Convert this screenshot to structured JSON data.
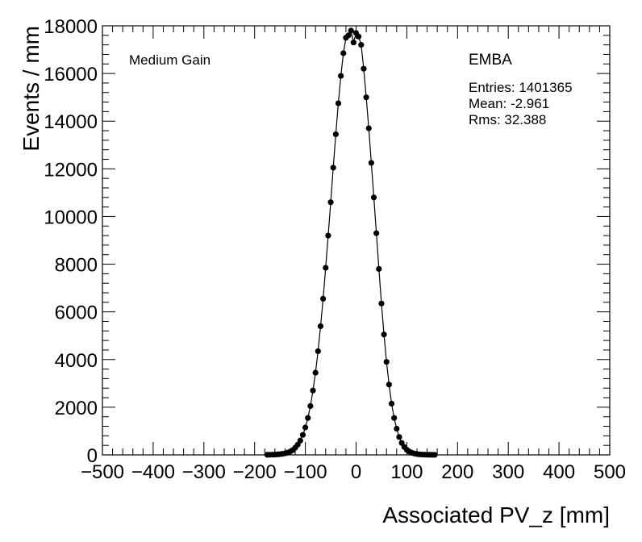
{
  "chart_data": {
    "type": "scatter",
    "title": "",
    "xlabel": "Associated PV_z [mm]",
    "ylabel": "Events / mm",
    "xlim": [
      -500,
      500
    ],
    "ylim": [
      0,
      18000
    ],
    "x_ticks": [
      -500,
      -400,
      -300,
      -200,
      -100,
      0,
      100,
      200,
      300,
      400,
      500
    ],
    "x_tick_labels": [
      "−500",
      "−400",
      "−300",
      "−200",
      "−100",
      "0",
      "100",
      "200",
      "300",
      "400",
      "500"
    ],
    "y_ticks": [
      0,
      2000,
      4000,
      6000,
      8000,
      10000,
      12000,
      14000,
      16000,
      18000
    ],
    "y_tick_labels": [
      "0",
      "2000",
      "4000",
      "6000",
      "8000",
      "10000",
      "12000",
      "14000",
      "16000",
      "18000"
    ],
    "grid": false,
    "series": [
      {
        "name": "",
        "color": "#000000",
        "x": [
          -175,
          -170,
          -165,
          -160,
          -155,
          -150,
          -145,
          -140,
          -135,
          -130,
          -125,
          -120,
          -115,
          -110,
          -105,
          -100,
          -95,
          -90,
          -85,
          -80,
          -75,
          -70,
          -65,
          -60,
          -55,
          -50,
          -45,
          -40,
          -35,
          -30,
          -25,
          -20,
          -15,
          -10,
          -5,
          0,
          5,
          10,
          15,
          20,
          25,
          30,
          35,
          40,
          45,
          50,
          55,
          60,
          65,
          70,
          75,
          80,
          85,
          90,
          95,
          100,
          105,
          110,
          115,
          120,
          125,
          130,
          135,
          140,
          145,
          150,
          155
        ],
        "y": [
          5,
          7,
          10,
          14,
          20,
          30,
          45,
          65,
          95,
          140,
          200,
          300,
          430,
          600,
          840,
          1150,
          1550,
          2050,
          2700,
          3450,
          4350,
          5400,
          6550,
          7850,
          9200,
          10600,
          12050,
          13450,
          14750,
          15900,
          16850,
          17500,
          17600,
          17800,
          17300,
          17700,
          17550,
          17200,
          16200,
          15000,
          13700,
          12250,
          10800,
          9300,
          7800,
          6350,
          5050,
          3900,
          2950,
          2150,
          1550,
          1100,
          750,
          500,
          330,
          215,
          140,
          90,
          58,
          37,
          23,
          15,
          10,
          7,
          5,
          3,
          2
        ]
      }
    ]
  },
  "annotations": {
    "left_label": "Medium Gain",
    "right_label": "EMBA",
    "entries": "Entries: 1401365",
    "mean": "Mean: -2.961",
    "rms": "Rms: 32.388"
  }
}
